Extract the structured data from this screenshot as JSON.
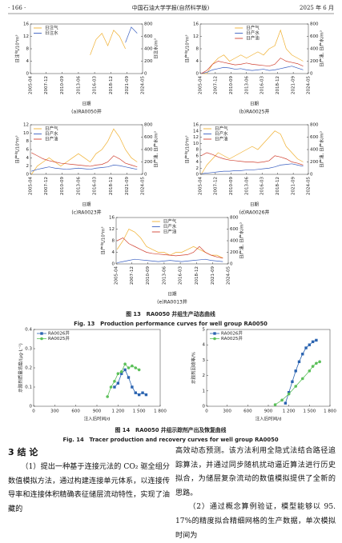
{
  "header": {
    "page": "· 166 ·",
    "journal": "中国石油大学学报(自然科学版)",
    "date": "2025 年 6 月"
  },
  "chart_data": [
    {
      "type": "line",
      "title": "(a)RA0050井",
      "x_label": "日期",
      "y_label": "日注气/10⁴m³",
      "y2_label": "日注水/m³",
      "legend": "top-left",
      "x": [
        "2005-06",
        "2006-06",
        "2007-06",
        "2008-06",
        "2009-06",
        "2010-06",
        "2011-06",
        "2012-06",
        "2013-06",
        "2014-06",
        "2015-06",
        "2016-06",
        "2017-06",
        "2018-06",
        "2019-06",
        "2020-06",
        "2021-06",
        "2022-06",
        "2023-06"
      ],
      "xlim": [
        "2005-04",
        "2024-05"
      ],
      "xticks": [
        "2005-04",
        "2007-12",
        "2010-09",
        "2013-06",
        "2016-03",
        "2018-12",
        "2021-09",
        "2024-05"
      ],
      "ylim": [
        0,
        16
      ],
      "yticks": [
        0,
        4,
        8,
        12,
        16
      ],
      "y2lim": [
        0,
        800
      ],
      "y2ticks": [
        0,
        200,
        400,
        600,
        800
      ],
      "series": [
        {
          "name": "日注气",
          "color": "#f0b030",
          "values": [
            null,
            null,
            null,
            null,
            null,
            null,
            null,
            null,
            null,
            null,
            6,
            11,
            13,
            9,
            14,
            12,
            8,
            null,
            null
          ]
        },
        {
          "name": "日注水",
          "color": "#3a5fc0",
          "axis": "y2",
          "values": [
            null,
            null,
            null,
            null,
            null,
            null,
            null,
            null,
            null,
            null,
            null,
            null,
            null,
            null,
            null,
            null,
            500,
            750,
            650
          ]
        }
      ]
    },
    {
      "type": "line",
      "title": "(b)RA0025井",
      "x_label": "日期",
      "y_label": "日产气/10⁴m³",
      "y2_label": "日产油, 日产水/m³",
      "legend": "top-center",
      "x": [
        "2005-06",
        "2006-06",
        "2007-06",
        "2008-06",
        "2009-06",
        "2010-06",
        "2011-06",
        "2012-06",
        "2013-06",
        "2014-06",
        "2015-06",
        "2016-06",
        "2017-06",
        "2018-06",
        "2019-06",
        "2020-06",
        "2021-06",
        "2022-06",
        "2023-06"
      ],
      "xlim": [
        "2005-04",
        "2024-05"
      ],
      "xticks": [
        "2005-04",
        "2007-12",
        "2010-09",
        "2013-06",
        "2016-03",
        "2018-12",
        "2021-09",
        "2024-05"
      ],
      "ylim": [
        0,
        16
      ],
      "yticks": [
        0,
        4,
        8,
        12,
        16
      ],
      "y2lim": [
        0,
        800
      ],
      "y2ticks": [
        0,
        200,
        400,
        600,
        800
      ],
      "series": [
        {
          "name": "日产气",
          "color": "#f0b030",
          "values": [
            0,
            0,
            3,
            5,
            6,
            4,
            5,
            6,
            5,
            6,
            7,
            6,
            8,
            9,
            14,
            8,
            6,
            5,
            4
          ]
        },
        {
          "name": "日产水",
          "color": "#3a5fc0",
          "axis": "y2",
          "values": [
            0,
            20,
            60,
            80,
            100,
            90,
            70,
            80,
            60,
            50,
            60,
            70,
            50,
            60,
            80,
            100,
            120,
            90,
            60
          ]
        },
        {
          "name": "日产油",
          "color": "#d04030",
          "axis": "y2",
          "values": [
            0,
            50,
            150,
            200,
            180,
            160,
            140,
            150,
            170,
            150,
            140,
            130,
            120,
            150,
            250,
            200,
            180,
            160,
            120
          ]
        }
      ]
    },
    {
      "type": "line",
      "title": "(c)RA0023井",
      "x_label": "日期",
      "y_label": "日产气/10⁴m³",
      "y2_label": "日产油, 日产水/m³",
      "legend": "top-left",
      "x": [
        "2005-06",
        "2006-06",
        "2007-06",
        "2008-06",
        "2009-06",
        "2010-06",
        "2011-06",
        "2012-06",
        "2013-06",
        "2014-06",
        "2015-06",
        "2016-06",
        "2017-06",
        "2018-06",
        "2019-06",
        "2020-06",
        "2021-06",
        "2022-06",
        "2023-06"
      ],
      "xlim": [
        "2005-04",
        "2024-05"
      ],
      "xticks": [
        "2005-04",
        "2007-12",
        "2010-09",
        "2013-06",
        "2016-03",
        "2018-12",
        "2021-09",
        "2024-05"
      ],
      "ylim": [
        0,
        12
      ],
      "yticks": [
        0,
        2,
        4,
        6,
        8,
        10,
        12
      ],
      "y2lim": [
        0,
        800
      ],
      "y2ticks": [
        0,
        200,
        400,
        600,
        800
      ],
      "series": [
        {
          "name": "日产气",
          "color": "#f0b030",
          "values": [
            0,
            2,
            3,
            4,
            3,
            2,
            3,
            4,
            5,
            4,
            3,
            5,
            6,
            8,
            11,
            9,
            6,
            4,
            3
          ]
        },
        {
          "name": "日产水",
          "color": "#3a5fc0",
          "axis": "y2",
          "values": [
            50,
            80,
            100,
            120,
            100,
            90,
            80,
            90,
            100,
            90,
            80,
            100,
            110,
            120,
            150,
            140,
            120,
            100,
            80
          ]
        },
        {
          "name": "日产油",
          "color": "#d04030",
          "axis": "y2",
          "values": [
            350,
            300,
            250,
            220,
            200,
            180,
            170,
            160,
            150,
            140,
            130,
            150,
            160,
            200,
            300,
            250,
            180,
            150,
            120
          ]
        }
      ]
    },
    {
      "type": "line",
      "title": "(d)RA0026井",
      "x_label": "日期",
      "y_label": "日产气/10⁴m³",
      "y2_label": "日产油, 日产水/m³",
      "legend": "top-left",
      "x": [
        "2005-06",
        "2006-06",
        "2007-06",
        "2008-06",
        "2009-06",
        "2010-06",
        "2011-06",
        "2012-06",
        "2013-06",
        "2014-06",
        "2015-06",
        "2016-06",
        "2017-06",
        "2018-06",
        "2019-06",
        "2020-06",
        "2021-06",
        "2022-06",
        "2023-06"
      ],
      "xlim": [
        "2005-04",
        "2024-05"
      ],
      "xticks": [
        "2005-04",
        "2007-12",
        "2010-09",
        "2013-06",
        "2016-03",
        "2018-12",
        "2021-09",
        "2024-05"
      ],
      "ylim": [
        0,
        16
      ],
      "yticks": [
        0,
        2,
        4,
        6,
        8,
        10,
        12,
        14,
        16
      ],
      "y2lim": [
        0,
        800
      ],
      "y2ticks": [
        0,
        200,
        400,
        600,
        800
      ],
      "series": [
        {
          "name": "日产气",
          "color": "#f0b030",
          "values": [
            0,
            3,
            5,
            7,
            6,
            5,
            6,
            7,
            8,
            9,
            8,
            10,
            12,
            14,
            13,
            9,
            7,
            5,
            4
          ]
        },
        {
          "name": "日产水",
          "color": "#3a5fc0",
          "axis": "y2",
          "values": [
            10,
            20,
            30,
            40,
            50,
            50,
            60,
            60,
            70,
            70,
            80,
            90,
            100,
            120,
            150,
            160,
            170,
            150,
            130
          ]
        },
        {
          "name": "日产油",
          "color": "#d04030",
          "axis": "y2",
          "values": [
            300,
            350,
            320,
            280,
            250,
            230,
            220,
            210,
            200,
            200,
            190,
            200,
            220,
            300,
            280,
            250,
            200,
            180,
            150
          ]
        }
      ]
    },
    {
      "type": "line",
      "title": "(e)RA0013井",
      "x_label": "日期",
      "y_label": "日产气/10⁴m³",
      "y2_label": "日产油, 日产水/m³",
      "legend": "top-center",
      "x": [
        "2005-06",
        "2006-06",
        "2007-06",
        "2008-06",
        "2009-06",
        "2010-06",
        "2011-06",
        "2012-06",
        "2013-06",
        "2014-06",
        "2015-06",
        "2016-06",
        "2017-06",
        "2018-06",
        "2019-06",
        "2020-06",
        "2021-06",
        "2022-06",
        "2023-06"
      ],
      "xlim": [
        "2005-04",
        "2024-05"
      ],
      "xticks": [
        "2005-04",
        "2007-12",
        "2010-09",
        "2013-06",
        "2016-03",
        "2018-12",
        "2021-09",
        "2024-05"
      ],
      "ylim": [
        0,
        16
      ],
      "yticks": [
        0,
        4,
        8,
        12,
        16
      ],
      "y2lim": [
        0,
        800
      ],
      "y2ticks": [
        0,
        200,
        400,
        600,
        800
      ],
      "series": [
        {
          "name": "日产气",
          "color": "#f0b030",
          "values": [
            5,
            8,
            12,
            11,
            9,
            6,
            5,
            4,
            4,
            3,
            4,
            4,
            5,
            6,
            5,
            4,
            3,
            3,
            2
          ]
        },
        {
          "name": "日产水",
          "color": "#3a5fc0",
          "axis": "y2",
          "values": [
            20,
            40,
            60,
            80,
            70,
            60,
            50,
            40,
            50,
            60,
            50,
            40,
            50,
            60,
            70,
            80,
            60,
            50,
            40
          ]
        },
        {
          "name": "日产油",
          "color": "#d04030",
          "axis": "y2",
          "values": [
            400,
            450,
            350,
            300,
            250,
            200,
            180,
            170,
            160,
            150,
            140,
            150,
            160,
            200,
            300,
            200,
            150,
            120,
            100
          ]
        }
      ]
    },
    {
      "type": "line",
      "markers": true,
      "x_label": "注入后时间/d",
      "y_label": "示踪剂质量浓度/(μg·L⁻¹)",
      "legend": "top-left",
      "xlim": [
        0,
        1800
      ],
      "xticks": [
        0,
        300,
        600,
        900,
        {
          "value": 1200,
          "label": "1 200"
        },
        {
          "value": 1500,
          "label": "1 500"
        },
        {
          "value": 1800,
          "label": "1 800"
        }
      ],
      "ylim": [
        0,
        0.4
      ],
      "yticks": [
        0,
        0.1,
        0.2,
        0.3,
        0.4
      ],
      "series": [
        {
          "name": "RA0026井",
          "color": "#2a63b0",
          "marker": "square",
          "x": [
            1150,
            1200,
            1250,
            1300,
            1350,
            1400,
            1450,
            1500,
            1550,
            1600
          ],
          "values": [
            0.1,
            0.12,
            0.17,
            0.19,
            0.15,
            0.1,
            0.07,
            0.06,
            0.07,
            0.06
          ]
        },
        {
          "name": "RA0025井",
          "color": "#5cc05a",
          "marker": "circle",
          "x": [
            1050,
            1100,
            1150,
            1200,
            1250,
            1300,
            1350,
            1400,
            1450,
            1500
          ],
          "values": [
            0.05,
            0.1,
            0.13,
            0.17,
            0.18,
            0.22,
            0.2,
            0.21,
            0.2,
            0.19
          ]
        }
      ]
    },
    {
      "type": "line",
      "markers": true,
      "x_label": "注入后时间/d",
      "y_label": "示踪剂回收率/%",
      "legend": "top-left",
      "xlim": [
        0,
        1800
      ],
      "xticks": [
        0,
        300,
        600,
        900,
        {
          "value": 1200,
          "label": "1 200"
        },
        {
          "value": 1500,
          "label": "1 500"
        },
        {
          "value": 1800,
          "label": "1 800"
        }
      ],
      "ylim": [
        0,
        5
      ],
      "yticks": [
        0,
        1,
        2,
        3,
        4,
        5
      ],
      "series": [
        {
          "name": "RA0026井",
          "color": "#2a63b0",
          "marker": "square",
          "x": [
            1150,
            1200,
            1250,
            1300,
            1350,
            1400,
            1450,
            1500,
            1550,
            1600
          ],
          "values": [
            0.2,
            0.9,
            1.6,
            2.3,
            2.9,
            3.4,
            3.8,
            4.0,
            4.2,
            4.3
          ]
        },
        {
          "name": "RA0025井",
          "color": "#5cc05a",
          "marker": "circle",
          "x": [
            1000,
            1100,
            1200,
            1300,
            1400,
            1500,
            1550,
            1600,
            1650
          ],
          "values": [
            0.1,
            0.4,
            0.8,
            1.3,
            1.8,
            2.3,
            2.6,
            2.8,
            2.9
          ]
        }
      ]
    }
  ],
  "figures": [
    {
      "caption_cn": "图 13　RA0050 井组生产动态曲线",
      "caption_en": "Fig. 13　Production performance curves for well group RA0050"
    },
    {
      "caption_cn": "图 14　RA0050 井组示踪剂产出及恢复曲线",
      "caption_en": "Fig. 14　Tracer production and recovery curves for well group RA0050"
    }
  ],
  "section": {
    "heading": "3 结 论",
    "left_column": [
      "（1）提出一种基于连接元法的 CO₂ 驱全组分数值模拟方法，通过构建连接单元体系，以连接传导率和连接体积精确表征储层流动特性，实现了油藏的"
    ],
    "right_column": [
      "高效动态预测。该方法利用全隐式法结合路径追踪算法，并通过同步随机扰动逼近算法进行历史拟合，为储层复杂流动的数值模拟提供了全新的思路。",
      "（2）通过概念算例验证，模型能够以 95. 17%的精度拟合精细网格的生产数据，单次模拟时间为"
    ]
  }
}
